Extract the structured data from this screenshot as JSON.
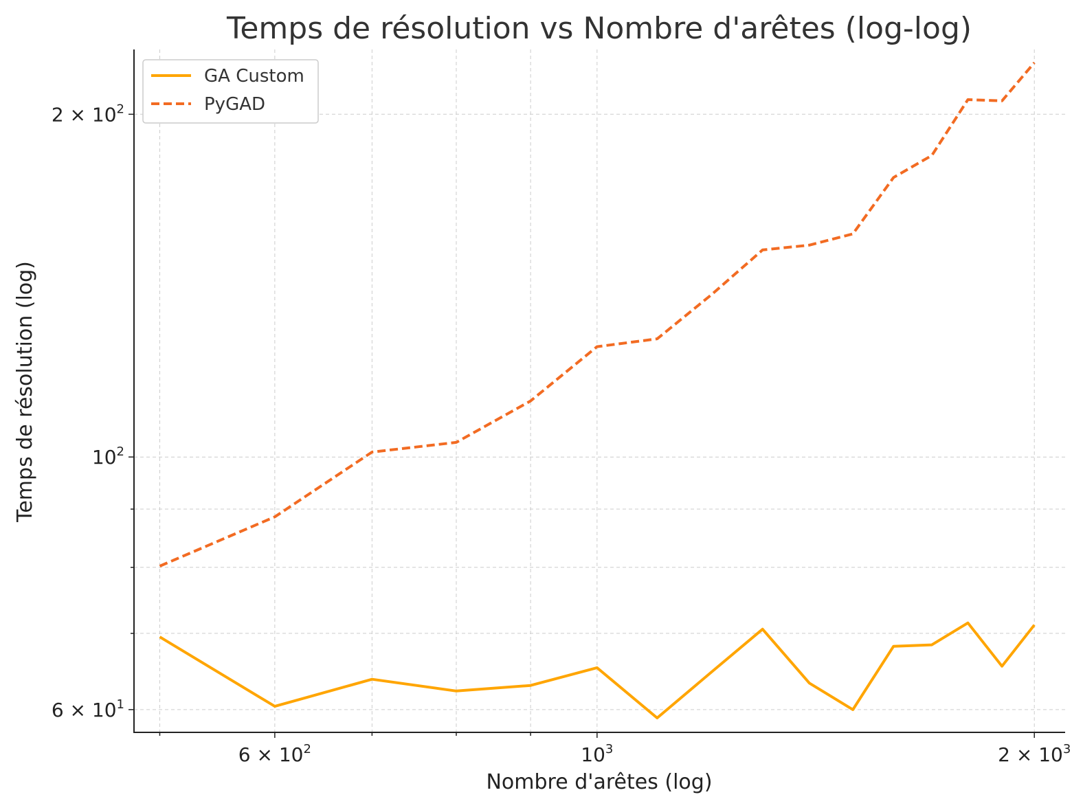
{
  "chart_data": {
    "type": "line",
    "title": "Temps de résolution vs Nombre d'arêtes (log-log)",
    "xlabel": "Nombre d'arêtes (log)",
    "ylabel": "Temps de résolution (log)",
    "xscale": "log",
    "yscale": "log",
    "xlim": [
      480,
      2100
    ],
    "ylim": [
      57.3,
      228
    ],
    "grid": true,
    "legend_position": "top-left",
    "x": [
      500,
      600,
      700,
      800,
      900,
      1000,
      1100,
      1200,
      1300,
      1400,
      1500,
      1600,
      1700,
      1800,
      1900,
      2000
    ],
    "series": [
      {
        "name": "GA Custom",
        "color": "#FFA500",
        "style": "solid",
        "values": [
          69.5,
          60.4,
          63.8,
          62.3,
          63.0,
          65.3,
          59.0,
          64.8,
          70.6,
          63.3,
          60.0,
          68.2,
          68.4,
          71.5,
          65.5,
          71.2
        ]
      },
      {
        "name": "PyGAD",
        "color": "#F26B22",
        "style": "dashed",
        "values": [
          80.2,
          88.6,
          101.0,
          103.0,
          112.0,
          125.0,
          127.0,
          139.0,
          152.0,
          153.5,
          157.0,
          176.0,
          184.0,
          206.0,
          205.5,
          222.0
        ]
      }
    ],
    "x_ticks": [
      {
        "value": 600,
        "mantissa": "6",
        "base": "10",
        "exp": "2"
      },
      {
        "value": 1000,
        "mantissa": "",
        "base": "10",
        "exp": "3"
      },
      {
        "value": 2000,
        "mantissa": "2",
        "base": "10",
        "exp": "3"
      }
    ],
    "x_minor_ticks": [
      500,
      700,
      800,
      900
    ],
    "y_ticks": [
      {
        "value": 60,
        "mantissa": "6",
        "base": "10",
        "exp": "1"
      },
      {
        "value": 100,
        "mantissa": "",
        "base": "10",
        "exp": "2"
      },
      {
        "value": 200,
        "mantissa": "2",
        "base": "10",
        "exp": "2"
      }
    ],
    "y_minor_ticks": [
      70,
      80,
      90
    ]
  }
}
